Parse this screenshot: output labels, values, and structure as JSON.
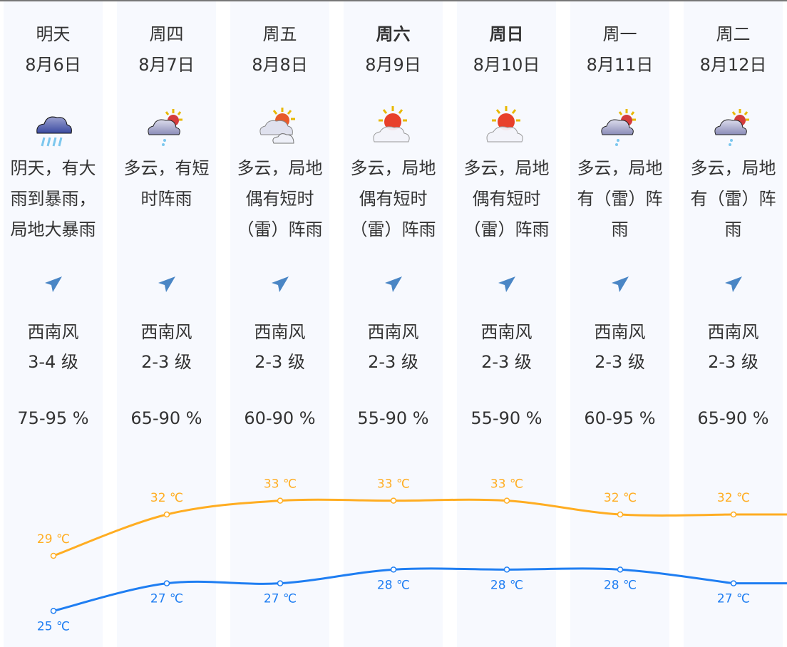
{
  "days": [
    {
      "day": "明天",
      "date": "8月6日",
      "icon": "heavy-rain-icon",
      "desc": [
        "阴天，有大",
        "雨到暴雨，",
        "局地大暴雨"
      ],
      "wind_dir": "西南风",
      "wind_level": "3-4 级",
      "humidity": "75-95 %",
      "high": "29 ℃",
      "low": "25 ℃",
      "bold": false
    },
    {
      "day": "周四",
      "date": "8月7日",
      "icon": "cloud-sun-shower-icon",
      "desc": [
        "多云，有短",
        "时阵雨"
      ],
      "wind_dir": "西南风",
      "wind_level": "2-3 级",
      "humidity": "65-90 %",
      "high": "32 ℃",
      "low": "27 ℃",
      "bold": false
    },
    {
      "day": "周五",
      "date": "8月8日",
      "icon": "partly-cloudy-icon",
      "desc": [
        "多云，局地",
        "偶有短时",
        "（雷）阵雨"
      ],
      "wind_dir": "西南风",
      "wind_level": "2-3 级",
      "humidity": "60-90 %",
      "high": "33 ℃",
      "low": "27 ℃",
      "bold": false
    },
    {
      "day": "周六",
      "date": "8月9日",
      "icon": "sun-behind-cloud-icon",
      "desc": [
        "多云，局地",
        "偶有短时",
        "（雷）阵雨"
      ],
      "wind_dir": "西南风",
      "wind_level": "2-3 级",
      "humidity": "55-90 %",
      "high": "33 ℃",
      "low": "28 ℃",
      "bold": true
    },
    {
      "day": "周日",
      "date": "8月10日",
      "icon": "sun-behind-cloud-icon",
      "desc": [
        "多云，局地",
        "偶有短时",
        "（雷）阵雨"
      ],
      "wind_dir": "西南风",
      "wind_level": "2-3 级",
      "humidity": "55-90 %",
      "high": "33 ℃",
      "low": "28 ℃",
      "bold": true
    },
    {
      "day": "周一",
      "date": "8月11日",
      "icon": "cloud-sun-shower-icon",
      "desc": [
        "多云，局地",
        "有（雷）阵",
        "雨"
      ],
      "wind_dir": "西南风",
      "wind_level": "2-3 级",
      "humidity": "60-95 %",
      "high": "32 ℃",
      "low": "28 ℃",
      "bold": false
    },
    {
      "day": "周二",
      "date": "8月12日",
      "icon": "cloud-sun-shower-icon",
      "desc": [
        "多云，局地",
        "有（雷）阵",
        "雨"
      ],
      "wind_dir": "西南风",
      "wind_level": "2-3 级",
      "humidity": "65-90 %",
      "high": "32 ℃",
      "low": "27 ℃",
      "bold": false
    }
  ],
  "wind_icon": "navigation-arrow-icon",
  "colors": {
    "high": "#ffad22",
    "low": "#1f7ef2",
    "column_bg": "#f7f9fe",
    "wind_arrow": "#4a86c5",
    "text": "#333333"
  },
  "chart_data": {
    "type": "line",
    "categories": [
      "8月6日",
      "8月7日",
      "8月8日",
      "8月9日",
      "8月10日",
      "8月11日",
      "8月12日"
    ],
    "series": [
      {
        "values": [
          29,
          32,
          33,
          33,
          33,
          32,
          32
        ],
        "color": "#ffad22"
      },
      {
        "values": [
          25,
          27,
          27,
          28,
          28,
          28,
          27
        ],
        "color": "#1f7ef2"
      }
    ],
    "unit": "℃",
    "smooth": true
  }
}
